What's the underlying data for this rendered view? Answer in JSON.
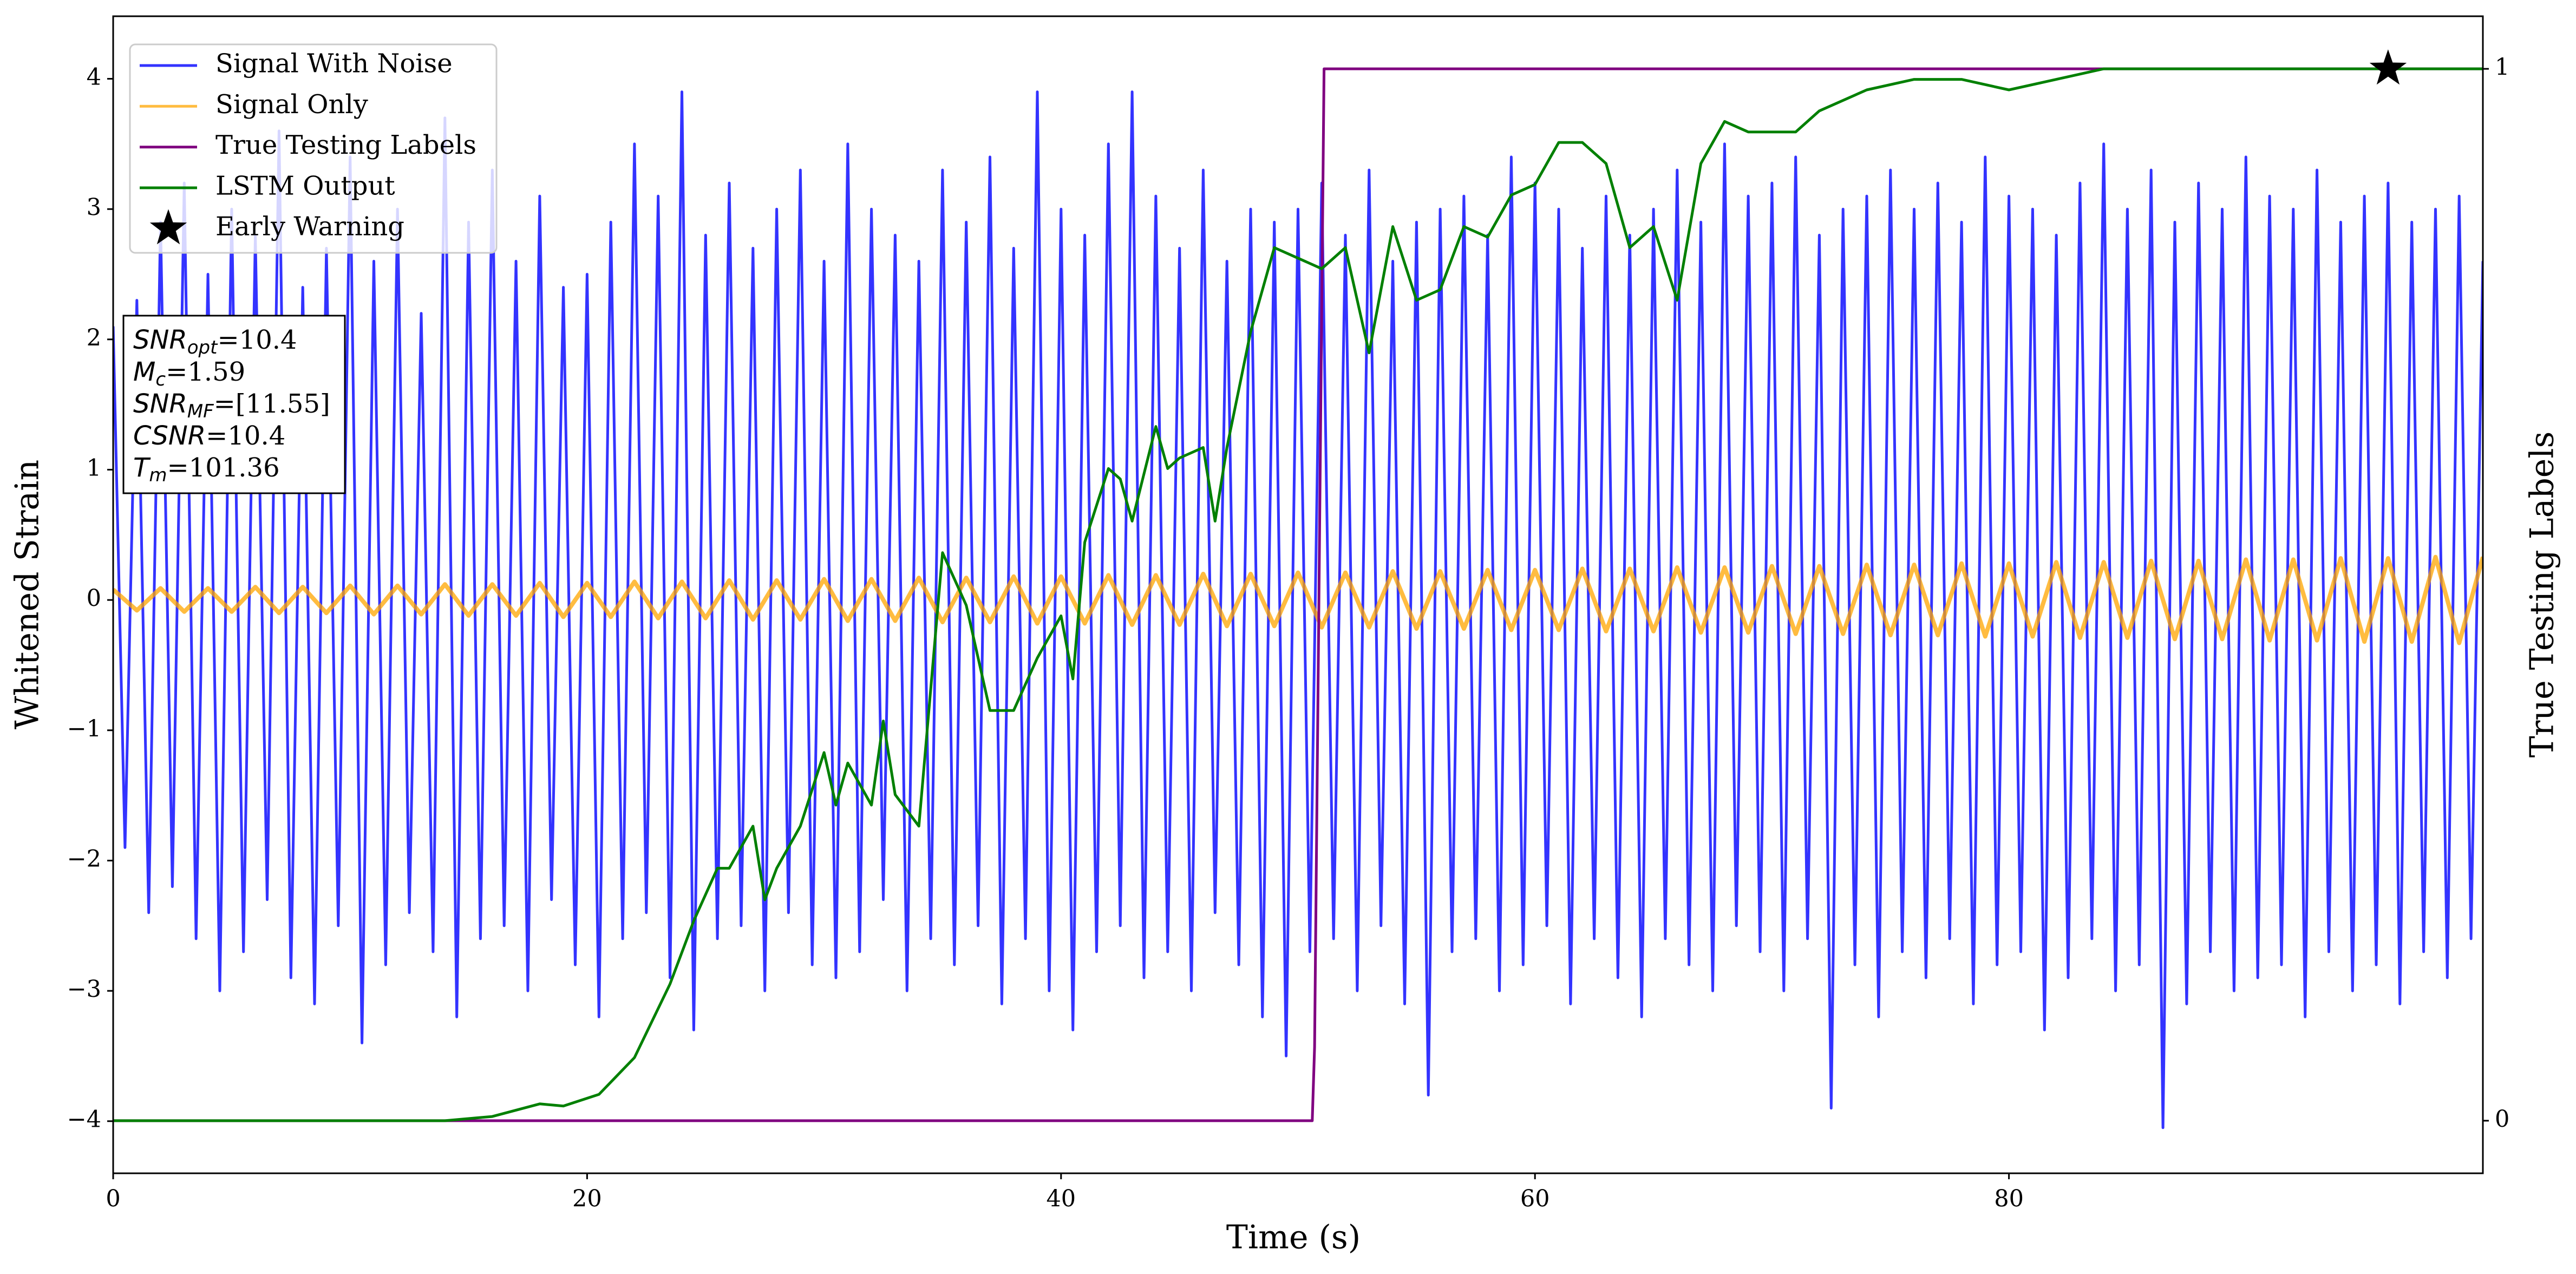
{
  "chart_data": {
    "type": "line",
    "xlabel": "Time (s)",
    "ylabel": "Whitened Strain",
    "y2label": "True Testing Labels",
    "xlim": [
      0,
      100
    ],
    "xticks": [
      0,
      20,
      40,
      60,
      80
    ],
    "ylim": [
      -4.4,
      4.48
    ],
    "yticks": [
      {
        "value": -4,
        "label": "−4"
      },
      {
        "value": -3,
        "label": "−3"
      },
      {
        "value": -2,
        "label": "−2"
      },
      {
        "value": -1,
        "label": "−1"
      },
      0,
      1,
      2,
      3,
      4
    ],
    "y2lim": [
      -0.05,
      1.05
    ],
    "y2ticks": [
      0,
      1
    ],
    "legend": "upper left",
    "series": [
      {
        "name": "Signal With Noise",
        "color": "#3333ff",
        "x": [
          0,
          0.5,
          1,
          1.5,
          2,
          2.5,
          3,
          3.5,
          4,
          4.5,
          5,
          5.5,
          6,
          6.5,
          7,
          7.5,
          8,
          8.5,
          9,
          9.5,
          10,
          10.5,
          11,
          11.5,
          12,
          12.5,
          13,
          13.5,
          14,
          14.5,
          15,
          15.5,
          16,
          16.5,
          17,
          17.5,
          18,
          18.5,
          19,
          19.5,
          20,
          20.5,
          21,
          21.5,
          22,
          22.5,
          23,
          23.5,
          24,
          24.5,
          25,
          25.5,
          26,
          26.5,
          27,
          27.5,
          28,
          28.5,
          29,
          29.5,
          30,
          30.5,
          31,
          31.5,
          32,
          32.5,
          33,
          33.5,
          34,
          34.5,
          35,
          35.5,
          36,
          36.5,
          37,
          37.5,
          38,
          38.5,
          39,
          39.5,
          40,
          40.5,
          41,
          41.5,
          42,
          42.5,
          43,
          43.5,
          44,
          44.5,
          45,
          45.5,
          46,
          46.5,
          47,
          47.5,
          48,
          48.5,
          49,
          49.5,
          50,
          50.5,
          51,
          51.5,
          52,
          52.5,
          53,
          53.5,
          54,
          54.5,
          55,
          55.5,
          56,
          56.5,
          57,
          57.5,
          58,
          58.5,
          59,
          59.5,
          60,
          60.5,
          61,
          61.5,
          62,
          62.5,
          63,
          63.5,
          64,
          64.5,
          65,
          65.5,
          66,
          66.5,
          67,
          67.5,
          68,
          68.5,
          69,
          69.5,
          70,
          70.5,
          71,
          71.5,
          72,
          72.5,
          73,
          73.5,
          74,
          74.5,
          75,
          75.5,
          76,
          76.5,
          77,
          77.5,
          78,
          78.5,
          79,
          79.5,
          80,
          80.5,
          81,
          81.5,
          82,
          82.5,
          83,
          83.5,
          84,
          84.5,
          85,
          85.5,
          86,
          86.5,
          87,
          87.5,
          88,
          88.5,
          89,
          89.5,
          90,
          90.5,
          91,
          91.5,
          92,
          92.5,
          93,
          93.5,
          94,
          94.5,
          95,
          95.5,
          96,
          96.5,
          97,
          97.5,
          98,
          98.5,
          99,
          99.5,
          100
        ],
        "values": [
          2.1,
          -1.9,
          2.3,
          -2.4,
          2.9,
          -2.2,
          3.2,
          -2.6,
          2.5,
          -3.0,
          3.0,
          -2.7,
          2.8,
          -2.3,
          3.6,
          -2.9,
          2.4,
          -3.1,
          2.7,
          -2.5,
          3.4,
          -3.4,
          2.6,
          -2.8,
          3.0,
          -2.4,
          2.2,
          -2.7,
          3.7,
          -3.2,
          2.9,
          -2.6,
          3.3,
          -2.5,
          2.6,
          -3.0,
          3.1,
          -2.3,
          2.4,
          -2.8,
          2.5,
          -3.2,
          2.9,
          -2.6,
          3.5,
          -2.4,
          3.1,
          -2.9,
          3.9,
          -3.3,
          2.8,
          -2.6,
          3.2,
          -2.5,
          2.7,
          -3.0,
          3.0,
          -2.4,
          3.3,
          -2.8,
          2.6,
          -2.9,
          3.5,
          -2.7,
          3.0,
          -2.3,
          2.8,
          -3.0,
          2.6,
          -2.6,
          3.3,
          -2.8,
          2.9,
          -2.5,
          3.4,
          -3.1,
          2.7,
          -2.6,
          3.9,
          -3.0,
          3.0,
          -3.3,
          2.8,
          -2.7,
          3.5,
          -2.5,
          3.9,
          -2.9,
          3.1,
          -2.7,
          2.7,
          -3.0,
          3.3,
          -2.4,
          2.6,
          -2.8,
          3.0,
          -3.2,
          2.9,
          -3.5,
          3.0,
          -2.7,
          3.2,
          -2.6,
          2.8,
          -3.0,
          3.3,
          -2.5,
          2.6,
          -3.1,
          2.9,
          -3.8,
          3.0,
          -2.7,
          3.1,
          -2.6,
          2.8,
          -3.0,
          3.4,
          -2.8,
          3.2,
          -2.5,
          3.0,
          -3.1,
          2.7,
          -2.6,
          3.1,
          -2.9,
          2.8,
          -3.2,
          3.0,
          -2.6,
          3.3,
          -2.8,
          2.9,
          -3.0,
          3.5,
          -2.5,
          3.1,
          -2.7,
          3.2,
          -3.0,
          3.4,
          -2.6,
          2.8,
          -3.9,
          3.0,
          -2.8,
          3.1,
          -3.2,
          3.3,
          -2.7,
          3.0,
          -2.9,
          3.2,
          -2.6,
          2.9,
          -3.1,
          3.4,
          -2.8,
          3.1,
          -2.7,
          3.0,
          -3.3,
          2.8,
          -2.9,
          3.2,
          -2.6,
          3.5,
          -3.0,
          3.0,
          -2.8,
          3.3,
          -4.05,
          2.9,
          -3.1,
          3.2,
          -2.7,
          3.0,
          -3.0,
          3.4,
          -2.9,
          3.1,
          -2.8,
          3.0,
          -3.2,
          3.3,
          -2.7,
          2.9,
          -3.0,
          3.1,
          -2.8,
          3.2,
          -3.1,
          2.9,
          -2.7,
          3.0,
          -2.9,
          3.1,
          -2.6,
          2.6
        ]
      },
      {
        "name": "Signal Only",
        "color": "#ffa500",
        "alpha": 0.75,
        "x": [
          0,
          1,
          2,
          3,
          4,
          5,
          6,
          7,
          8,
          9,
          10,
          11,
          12,
          13,
          14,
          15,
          16,
          17,
          18,
          19,
          20,
          21,
          22,
          23,
          24,
          25,
          26,
          27,
          28,
          29,
          30,
          31,
          32,
          33,
          34,
          35,
          36,
          37,
          38,
          39,
          40,
          41,
          42,
          43,
          44,
          45,
          46,
          47,
          48,
          49,
          50,
          51,
          52,
          53,
          54,
          55,
          56,
          57,
          58,
          59,
          60,
          61,
          62,
          63,
          64,
          65,
          66,
          67,
          68,
          69,
          70,
          71,
          72,
          73,
          74,
          75,
          76,
          77,
          78,
          79,
          80,
          81,
          82,
          83,
          84,
          85,
          86,
          87,
          88,
          89,
          90,
          91,
          92,
          93,
          94,
          95,
          96,
          97,
          98,
          99,
          100
        ],
        "values": [
          0.08,
          -0.08,
          0.09,
          -0.09,
          0.09,
          -0.09,
          0.1,
          -0.1,
          0.1,
          -0.1,
          0.11,
          -0.11,
          0.11,
          -0.11,
          0.12,
          -0.12,
          0.12,
          -0.12,
          0.13,
          -0.13,
          0.13,
          -0.13,
          0.14,
          -0.14,
          0.14,
          -0.14,
          0.15,
          -0.15,
          0.15,
          -0.15,
          0.16,
          -0.16,
          0.16,
          -0.16,
          0.17,
          -0.17,
          0.17,
          -0.17,
          0.18,
          -0.18,
          0.18,
          -0.18,
          0.19,
          -0.19,
          0.19,
          -0.19,
          0.2,
          -0.2,
          0.2,
          -0.2,
          0.21,
          -0.21,
          0.21,
          -0.21,
          0.22,
          -0.22,
          0.22,
          -0.22,
          0.23,
          -0.23,
          0.23,
          -0.23,
          0.24,
          -0.24,
          0.24,
          -0.24,
          0.25,
          -0.25,
          0.25,
          -0.25,
          0.26,
          -0.26,
          0.26,
          -0.26,
          0.27,
          -0.27,
          0.27,
          -0.27,
          0.28,
          -0.28,
          0.28,
          -0.28,
          0.29,
          -0.29,
          0.29,
          -0.29,
          0.3,
          -0.3,
          0.3,
          -0.3,
          0.31,
          -0.31,
          0.31,
          -0.31,
          0.32,
          -0.32,
          0.32,
          -0.32,
          0.33,
          -0.33,
          0.33
        ]
      },
      {
        "name": "True Testing Labels",
        "color": "purple",
        "axis": "y2",
        "x": [
          0,
          50.6,
          50.7,
          51.1,
          100
        ],
        "values": [
          0,
          0,
          0.07,
          1,
          1
        ]
      },
      {
        "name": "LSTM Output",
        "color": "green",
        "axis": "y2",
        "x": [
          0,
          14,
          16,
          18,
          19,
          20.5,
          22,
          23.5,
          24.5,
          25.5,
          26,
          27,
          27.5,
          28,
          29,
          30,
          30.5,
          31,
          32,
          32.5,
          33,
          34,
          35,
          36,
          37,
          38,
          39,
          40,
          40.5,
          41,
          42,
          42.5,
          43,
          44,
          44.5,
          45,
          46,
          46.5,
          47,
          48,
          49,
          50,
          51,
          52,
          53,
          54,
          55,
          56,
          57,
          58,
          59,
          60,
          61,
          62,
          63,
          64,
          65,
          66,
          67,
          68,
          69,
          70,
          71,
          72,
          74,
          76,
          78,
          80,
          82,
          84,
          90,
          100
        ],
        "values": [
          0,
          0,
          0.004,
          0.016,
          0.014,
          0.025,
          0.06,
          0.13,
          0.19,
          0.24,
          0.24,
          0.28,
          0.21,
          0.24,
          0.28,
          0.35,
          0.3,
          0.34,
          0.3,
          0.38,
          0.31,
          0.28,
          0.54,
          0.49,
          0.39,
          0.39,
          0.44,
          0.48,
          0.42,
          0.55,
          0.62,
          0.61,
          0.57,
          0.66,
          0.62,
          0.63,
          0.64,
          0.57,
          0.64,
          0.75,
          0.83,
          0.82,
          0.81,
          0.83,
          0.73,
          0.85,
          0.78,
          0.79,
          0.85,
          0.84,
          0.88,
          0.89,
          0.93,
          0.93,
          0.91,
          0.83,
          0.85,
          0.78,
          0.91,
          0.95,
          0.94,
          0.94,
          0.94,
          0.96,
          0.98,
          0.99,
          0.99,
          0.98,
          0.99,
          1.0,
          1.0,
          1.0
        ]
      },
      {
        "name": "Early Warning",
        "color": "black",
        "axis": "y2",
        "marker": "star",
        "x": [
          96
        ],
        "values": [
          1
        ]
      }
    ],
    "annotations": [
      {
        "name": "SNR",
        "sub": "opt",
        "text": "=10.4"
      },
      {
        "name": "M",
        "sub": "c",
        "text": "=1.59"
      },
      {
        "name": "SNR",
        "sub": "MF",
        "text": "=[11.55]"
      },
      {
        "name": "CSNR",
        "text": "=10.4"
      },
      {
        "name": "T",
        "sub": "m",
        "text": "=101.36"
      }
    ]
  }
}
